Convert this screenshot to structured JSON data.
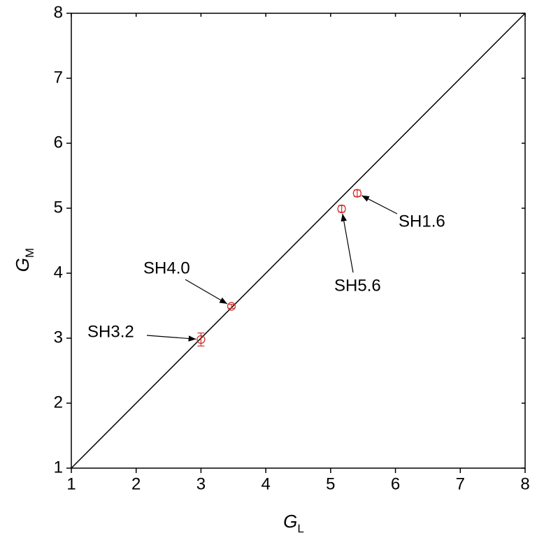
{
  "chart_data": {
    "type": "scatter",
    "xlabel": {
      "text": "G",
      "subscript": "L"
    },
    "ylabel": {
      "text": "G",
      "subscript": "M"
    },
    "xlim": [
      1,
      8
    ],
    "ylim": [
      1,
      8
    ],
    "xticks": [
      1,
      2,
      3,
      4,
      5,
      6,
      7,
      8
    ],
    "yticks": [
      1,
      2,
      3,
      4,
      5,
      6,
      7,
      8
    ],
    "identity_line": true,
    "series": [
      {
        "color": "#d0312d",
        "x": [
          3.0,
          3.47,
          5.17,
          5.41
        ],
        "values": [
          2.98,
          3.49,
          4.99,
          5.23
        ],
        "errors": [
          0.1,
          0.03,
          0.05,
          0.05
        ],
        "labels": [
          "SH3.2",
          "SH4.0",
          "SH5.6",
          "SH1.6"
        ]
      }
    ]
  }
}
